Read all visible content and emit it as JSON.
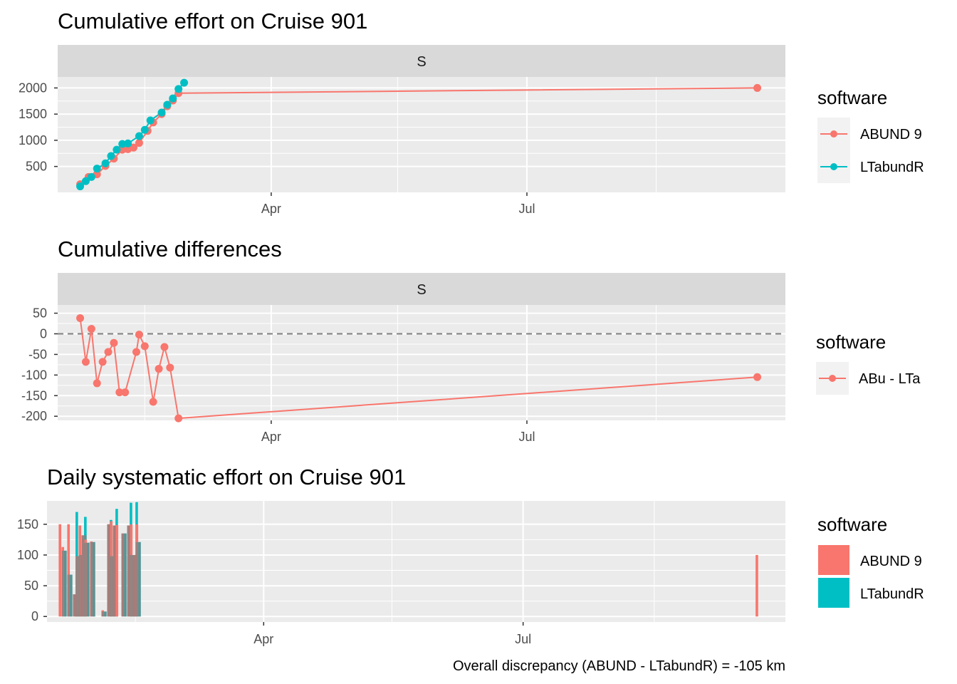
{
  "colors": {
    "abund": "#F8766D",
    "ltabundr": "#00BFC4",
    "panel_bg": "#EBEBEB",
    "strip_bg": "#D9D9D9",
    "grid": "#FFFFFF",
    "zero_line": "#7F7F7F"
  },
  "caption": "Overall discrepancy (ABUND - LTabundR) = -105 km",
  "chart_data": [
    {
      "type": "line",
      "title": "Cumulative effort on Cruise 901",
      "facet": "S",
      "xlabel": "",
      "ylabel": "",
      "x_ticks": [
        "Apr",
        "Jul"
      ],
      "y_ticks": [
        500,
        1000,
        1500,
        2000
      ],
      "ylim": [
        5,
        2210
      ],
      "grid": true,
      "legend": {
        "title": "software",
        "position": "right",
        "entries": [
          "ABUND 9",
          "LTabundR"
        ]
      },
      "series": [
        {
          "name": "ABUND 9",
          "color": "#F8766D",
          "points": [
            [
              "Jan 23",
              160
            ],
            [
              "Jan 26",
              300
            ],
            [
              "Jan 29",
              350
            ],
            [
              "Feb 1",
              510
            ],
            [
              "Feb 4",
              650
            ],
            [
              "Feb 7",
              820
            ],
            [
              "Feb 9",
              830
            ],
            [
              "Feb 11",
              860
            ],
            [
              "Feb 13",
              950
            ],
            [
              "Feb 16",
              1180
            ],
            [
              "Feb 18",
              1340
            ],
            [
              "Feb 21",
              1500
            ],
            [
              "Feb 23",
              1650
            ],
            [
              "Feb 25",
              1760
            ],
            [
              "Feb 27",
              1900
            ],
            [
              "Sep 21",
              2000
            ]
          ]
        },
        {
          "name": "LTabundR",
          "color": "#00BFC4",
          "points": [
            [
              "Jan 23",
              120
            ],
            [
              "Jan 25",
              220
            ],
            [
              "Jan 27",
              300
            ],
            [
              "Jan 29",
              460
            ],
            [
              "Feb 1",
              560
            ],
            [
              "Feb 3",
              700
            ],
            [
              "Feb 5",
              820
            ],
            [
              "Feb 7",
              930
            ],
            [
              "Feb 9",
              940
            ],
            [
              "Feb 13",
              1080
            ],
            [
              "Feb 15",
              1200
            ],
            [
              "Feb 17",
              1380
            ],
            [
              "Feb 21",
              1530
            ],
            [
              "Feb 23",
              1680
            ],
            [
              "Feb 25",
              1800
            ],
            [
              "Feb 27",
              1980
            ],
            [
              "Mar 1",
              2100
            ]
          ]
        }
      ]
    },
    {
      "type": "line",
      "title": "Cumulative differences",
      "facet": "S",
      "xlabel": "",
      "ylabel": "",
      "x_ticks": [
        "Apr",
        "Jul"
      ],
      "y_ticks": [
        -200,
        -150,
        -100,
        -50,
        0,
        50
      ],
      "ylim": [
        -210,
        70
      ],
      "reference_line": 0,
      "grid": true,
      "legend": {
        "title": "software",
        "position": "right",
        "entries": [
          "ABu - LTa"
        ]
      },
      "series": [
        {
          "name": "ABu - LTa",
          "color": "#F8766D",
          "points": [
            [
              "Jan 23",
              38
            ],
            [
              "Jan 25",
              -68
            ],
            [
              "Jan 27",
              12
            ],
            [
              "Jan 29",
              -120
            ],
            [
              "Jan 31",
              -68
            ],
            [
              "Feb 2",
              -44
            ],
            [
              "Feb 4",
              -22
            ],
            [
              "Feb 6",
              -142
            ],
            [
              "Feb 8",
              -142
            ],
            [
              "Feb 12",
              -44
            ],
            [
              "Feb 13",
              -2
            ],
            [
              "Feb 15",
              -30
            ],
            [
              "Feb 18",
              -165
            ],
            [
              "Feb 20",
              -85
            ],
            [
              "Feb 22",
              -32
            ],
            [
              "Feb 24",
              -82
            ],
            [
              "Feb 27",
              -205
            ],
            [
              "Sep 21",
              -105
            ]
          ]
        }
      ]
    },
    {
      "type": "bar",
      "title": "Daily systematic effort on Cruise 901",
      "xlabel": "",
      "ylabel": "",
      "x_ticks": [
        "Apr",
        "Jul"
      ],
      "y_ticks": [
        0,
        50,
        100,
        150
      ],
      "ylim": [
        -9,
        188
      ],
      "grid": true,
      "legend": {
        "title": "software",
        "position": "right",
        "entries": [
          "ABUND 9",
          "LTabundR"
        ]
      },
      "dodge": true,
      "series": [
        {
          "name": "ABUND 9",
          "color": "#F8766D",
          "bars": [
            [
              "Jan 20",
              150
            ],
            [
              "Jan 21",
              113
            ],
            [
              "Jan 23",
              150
            ],
            [
              "Jan 25",
              36
            ],
            [
              "Jan 26",
              98
            ],
            [
              "Jan 27",
              148
            ],
            [
              "Jan 28",
              132
            ],
            [
              "Jan 29",
              125
            ],
            [
              "Jan 31",
              122
            ],
            [
              "Feb 4",
              10
            ],
            [
              "Feb 6",
              150
            ],
            [
              "Feb 7",
              155
            ],
            [
              "Feb 8",
              148
            ],
            [
              "Feb 9",
              149
            ],
            [
              "Feb 11",
              135
            ],
            [
              "Feb 13",
              148
            ],
            [
              "Feb 14",
              150
            ],
            [
              "Feb 15",
              100
            ],
            [
              "Feb 16",
              150
            ],
            [
              "Sep 21",
              100
            ]
          ]
        },
        {
          "name": "LTabundR",
          "color": "#00BFC4",
          "bars": [
            [
              "Jan 20",
              0
            ],
            [
              "Jan 21",
              107
            ],
            [
              "Jan 23",
              68
            ],
            [
              "Jan 25",
              170
            ],
            [
              "Jan 26",
              98
            ],
            [
              "Jan 27",
              100
            ],
            [
              "Jan 28",
              162
            ],
            [
              "Jan 29",
              120
            ],
            [
              "Jan 31",
              121
            ],
            [
              "Feb 4",
              8
            ],
            [
              "Feb 6",
              157
            ],
            [
              "Feb 7",
              98
            ],
            [
              "Feb 8",
              175
            ],
            [
              "Feb 9",
              0
            ],
            [
              "Feb 11",
              135
            ],
            [
              "Feb 13",
              185
            ],
            [
              "Feb 14",
              100
            ],
            [
              "Feb 15",
              186
            ],
            [
              "Feb 16",
              121
            ]
          ]
        }
      ]
    }
  ]
}
